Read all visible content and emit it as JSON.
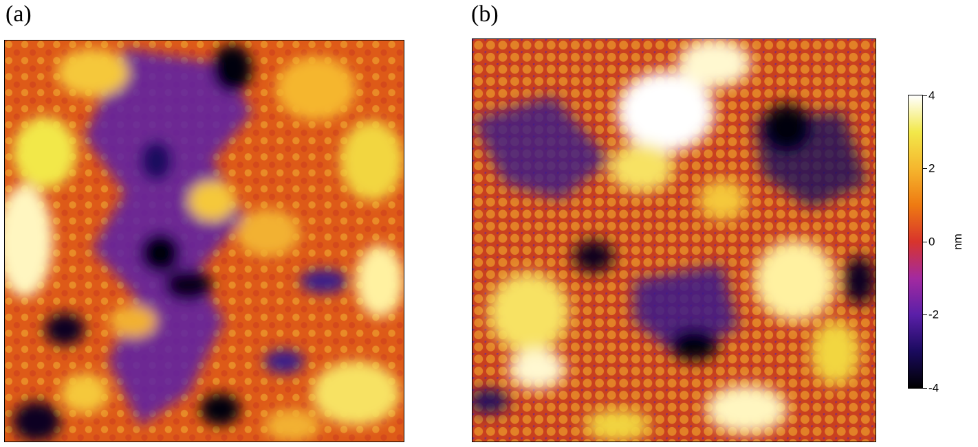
{
  "panels": [
    {
      "label": "(a)"
    },
    {
      "label": "(b)"
    }
  ],
  "colorbar": {
    "unit": "nm",
    "min": -4,
    "max": 4,
    "ticks": [
      "4",
      "2",
      "0",
      "-2",
      "-4"
    ],
    "colormap": [
      "#000000",
      "#1a0a5e",
      "#5a1fa8",
      "#a32aa0",
      "#d8342c",
      "#ee7a12",
      "#f5b62e",
      "#f2e84a",
      "#ffffff"
    ]
  }
}
